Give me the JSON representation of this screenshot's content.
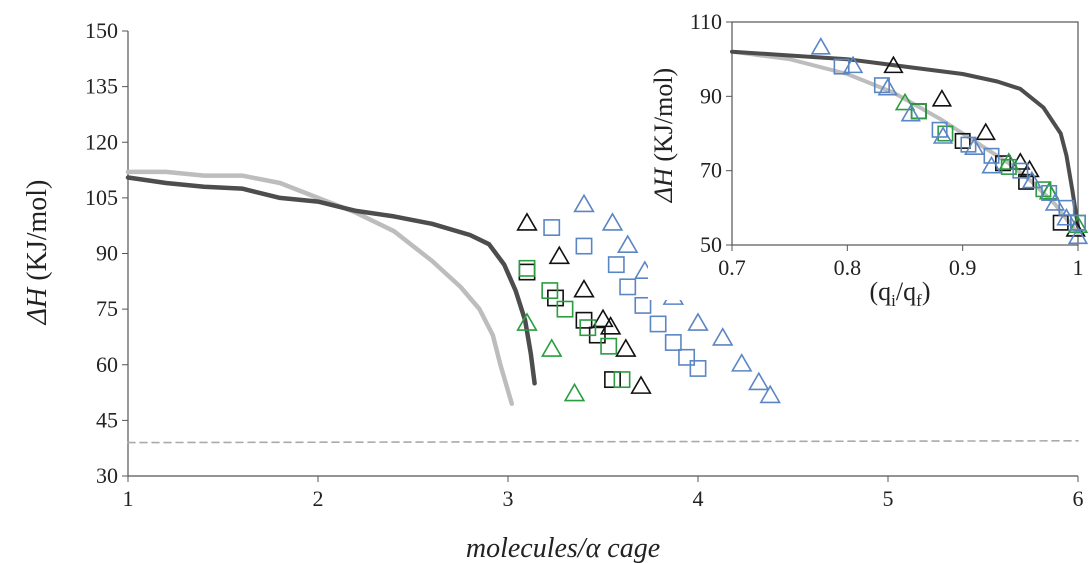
{
  "chart_data": [
    {
      "type": "scatter",
      "role": "main",
      "xlabel": "molecules/α cage",
      "ylabel_italic": "ΔH",
      "ylabel_rest": " (KJ/mol)",
      "xlim": [
        1,
        6
      ],
      "ylim": [
        30,
        150
      ],
      "xticks": [
        "1",
        "2",
        "3",
        "4",
        "5",
        "6"
      ],
      "yticks": [
        "30",
        "45",
        "60",
        "75",
        "90",
        "105",
        "120",
        "135",
        "150"
      ],
      "lines": [
        {
          "color": "#bdbdbd",
          "dash": false,
          "points": [
            [
              1.0,
              112
            ],
            [
              1.2,
              112
            ],
            [
              1.4,
              111
            ],
            [
              1.6,
              111
            ],
            [
              1.8,
              109
            ],
            [
              2.0,
              105
            ],
            [
              2.2,
              101
            ],
            [
              2.4,
              96
            ],
            [
              2.6,
              88
            ],
            [
              2.75,
              81
            ],
            [
              2.85,
              75
            ],
            [
              2.92,
              68
            ],
            [
              2.96,
              60
            ],
            [
              3.0,
              53
            ],
            [
              3.02,
              49.5
            ]
          ]
        },
        {
          "color": "#4d4d4d",
          "dash": false,
          "points": [
            [
              1.0,
              110.5
            ],
            [
              1.2,
              109
            ],
            [
              1.4,
              108
            ],
            [
              1.6,
              107.5
            ],
            [
              1.8,
              105
            ],
            [
              2.0,
              104
            ],
            [
              2.2,
              101.5
            ],
            [
              2.4,
              100
            ],
            [
              2.6,
              98
            ],
            [
              2.8,
              95
            ],
            [
              2.9,
              92.5
            ],
            [
              2.98,
              87
            ],
            [
              3.04,
              80
            ],
            [
              3.09,
              72
            ],
            [
              3.12,
              63
            ],
            [
              3.14,
              55
            ]
          ]
        },
        {
          "color": "#aaaaaa",
          "dash": true,
          "points": [
            [
              1.0,
              39
            ],
            [
              6.0,
              39.5
            ]
          ]
        }
      ],
      "series": [
        {
          "marker": "triangle",
          "color": "#111111",
          "points": [
            [
              3.1,
              98
            ],
            [
              3.27,
              89
            ],
            [
              3.4,
              80
            ],
            [
              3.5,
              72
            ],
            [
              3.54,
              70
            ],
            [
              3.62,
              64
            ],
            [
              3.7,
              54
            ]
          ]
        },
        {
          "marker": "square",
          "color": "#111111",
          "points": [
            [
              3.1,
              85
            ],
            [
              3.25,
              78
            ],
            [
              3.4,
              72
            ],
            [
              3.47,
              68
            ],
            [
              3.55,
              56
            ]
          ]
        },
        {
          "marker": "square",
          "color": "#2a9d3f",
          "points": [
            [
              3.1,
              86
            ],
            [
              3.22,
              80
            ],
            [
              3.3,
              75
            ],
            [
              3.42,
              70
            ],
            [
              3.53,
              65
            ],
            [
              3.6,
              56
            ]
          ]
        },
        {
          "marker": "triangle",
          "color": "#2a9d3f",
          "points": [
            [
              3.1,
              71
            ],
            [
              3.23,
              64
            ],
            [
              3.35,
              52
            ]
          ]
        },
        {
          "marker": "square",
          "color": "#5b86c4",
          "points": [
            [
              3.23,
              97
            ],
            [
              3.4,
              92
            ],
            [
              3.57,
              87
            ],
            [
              3.63,
              81
            ],
            [
              3.71,
              76
            ],
            [
              3.79,
              71
            ],
            [
              3.87,
              66
            ],
            [
              3.94,
              62
            ],
            [
              4.0,
              59
            ]
          ]
        },
        {
          "marker": "triangle",
          "color": "#5b86c4",
          "points": [
            [
              3.4,
              103
            ],
            [
              3.55,
              98
            ],
            [
              3.63,
              92
            ],
            [
              3.72,
              85
            ],
            [
              3.87,
              78
            ],
            [
              4.0,
              71
            ],
            [
              4.13,
              67
            ],
            [
              4.23,
              60
            ],
            [
              4.32,
              55
            ],
            [
              4.38,
              51.5
            ]
          ]
        }
      ]
    },
    {
      "type": "scatter",
      "role": "inset",
      "xlabel_base": "(q",
      "xlabel_sub1": "i",
      "xlabel_mid": "/q",
      "xlabel_sub2": "f",
      "xlabel_end": ")",
      "ylabel_italic": "ΔH",
      "ylabel_rest": " (KJ/mol)",
      "xlim": [
        0.7,
        1.0
      ],
      "ylim": [
        50,
        110
      ],
      "xticks": [
        "0.7",
        "0.8",
        "0.9",
        "1"
      ],
      "yticks": [
        "50",
        "70",
        "90",
        "110"
      ],
      "lines": [
        {
          "color": "#bdbdbd",
          "points": [
            [
              0.7,
              102
            ],
            [
              0.75,
              100
            ],
            [
              0.8,
              96
            ],
            [
              0.84,
              91
            ],
            [
              0.88,
              84
            ],
            [
              0.9,
              80
            ],
            [
              0.92,
              76
            ],
            [
              0.94,
              72
            ],
            [
              0.96,
              67
            ],
            [
              0.98,
              61
            ],
            [
              0.99,
              57
            ],
            [
              1.0,
              53
            ]
          ]
        },
        {
          "color": "#4d4d4d",
          "points": [
            [
              0.7,
              102
            ],
            [
              0.75,
              101
            ],
            [
              0.8,
              100
            ],
            [
              0.85,
              98
            ],
            [
              0.9,
              96
            ],
            [
              0.93,
              94
            ],
            [
              0.95,
              92
            ],
            [
              0.97,
              87
            ],
            [
              0.985,
              80
            ],
            [
              0.99,
              74
            ],
            [
              0.995,
              65
            ],
            [
              1.0,
              55
            ]
          ]
        }
      ],
      "series": [
        {
          "marker": "triangle",
          "color": "#111111",
          "points": [
            [
              0.84,
              98
            ],
            [
              0.882,
              89
            ],
            [
              0.92,
              80
            ],
            [
              0.95,
              72
            ],
            [
              0.958,
              70
            ],
            [
              0.975,
              64
            ],
            [
              0.998,
              54
            ]
          ]
        },
        {
          "marker": "square",
          "color": "#111111",
          "points": [
            [
              0.862,
              86
            ],
            [
              0.9,
              78
            ],
            [
              0.935,
              72
            ],
            [
              0.955,
              67
            ],
            [
              0.985,
              56
            ]
          ]
        },
        {
          "marker": "square",
          "color": "#2a9d3f",
          "points": [
            [
              0.862,
              86
            ],
            [
              0.885,
              80
            ],
            [
              0.94,
              71
            ],
            [
              0.97,
              65
            ],
            [
              1.0,
              56
            ]
          ]
        },
        {
          "marker": "triangle",
          "color": "#2a9d3f",
          "points": [
            [
              0.85,
              88
            ],
            [
              0.94,
              72
            ],
            [
              0.975,
              64
            ],
            [
              1.0,
              55
            ]
          ]
        },
        {
          "marker": "square",
          "color": "#5b86c4",
          "points": [
            [
              0.795,
              98
            ],
            [
              0.83,
              93
            ],
            [
              0.88,
              81
            ],
            [
              0.905,
              77
            ],
            [
              0.925,
              74
            ],
            [
              0.95,
              70
            ],
            [
              0.975,
              64
            ],
            [
              0.99,
              60
            ],
            [
              1.0,
              56
            ]
          ]
        },
        {
          "marker": "triangle",
          "color": "#5b86c4",
          "points": [
            [
              0.777,
              103
            ],
            [
              0.805,
              98
            ],
            [
              0.835,
              92
            ],
            [
              0.855,
              85
            ],
            [
              0.883,
              79
            ],
            [
              0.91,
              76
            ],
            [
              0.925,
              71
            ],
            [
              0.96,
              67
            ],
            [
              0.98,
              61
            ],
            [
              0.99,
              57
            ],
            [
              1.0,
              52
            ]
          ]
        }
      ]
    }
  ]
}
